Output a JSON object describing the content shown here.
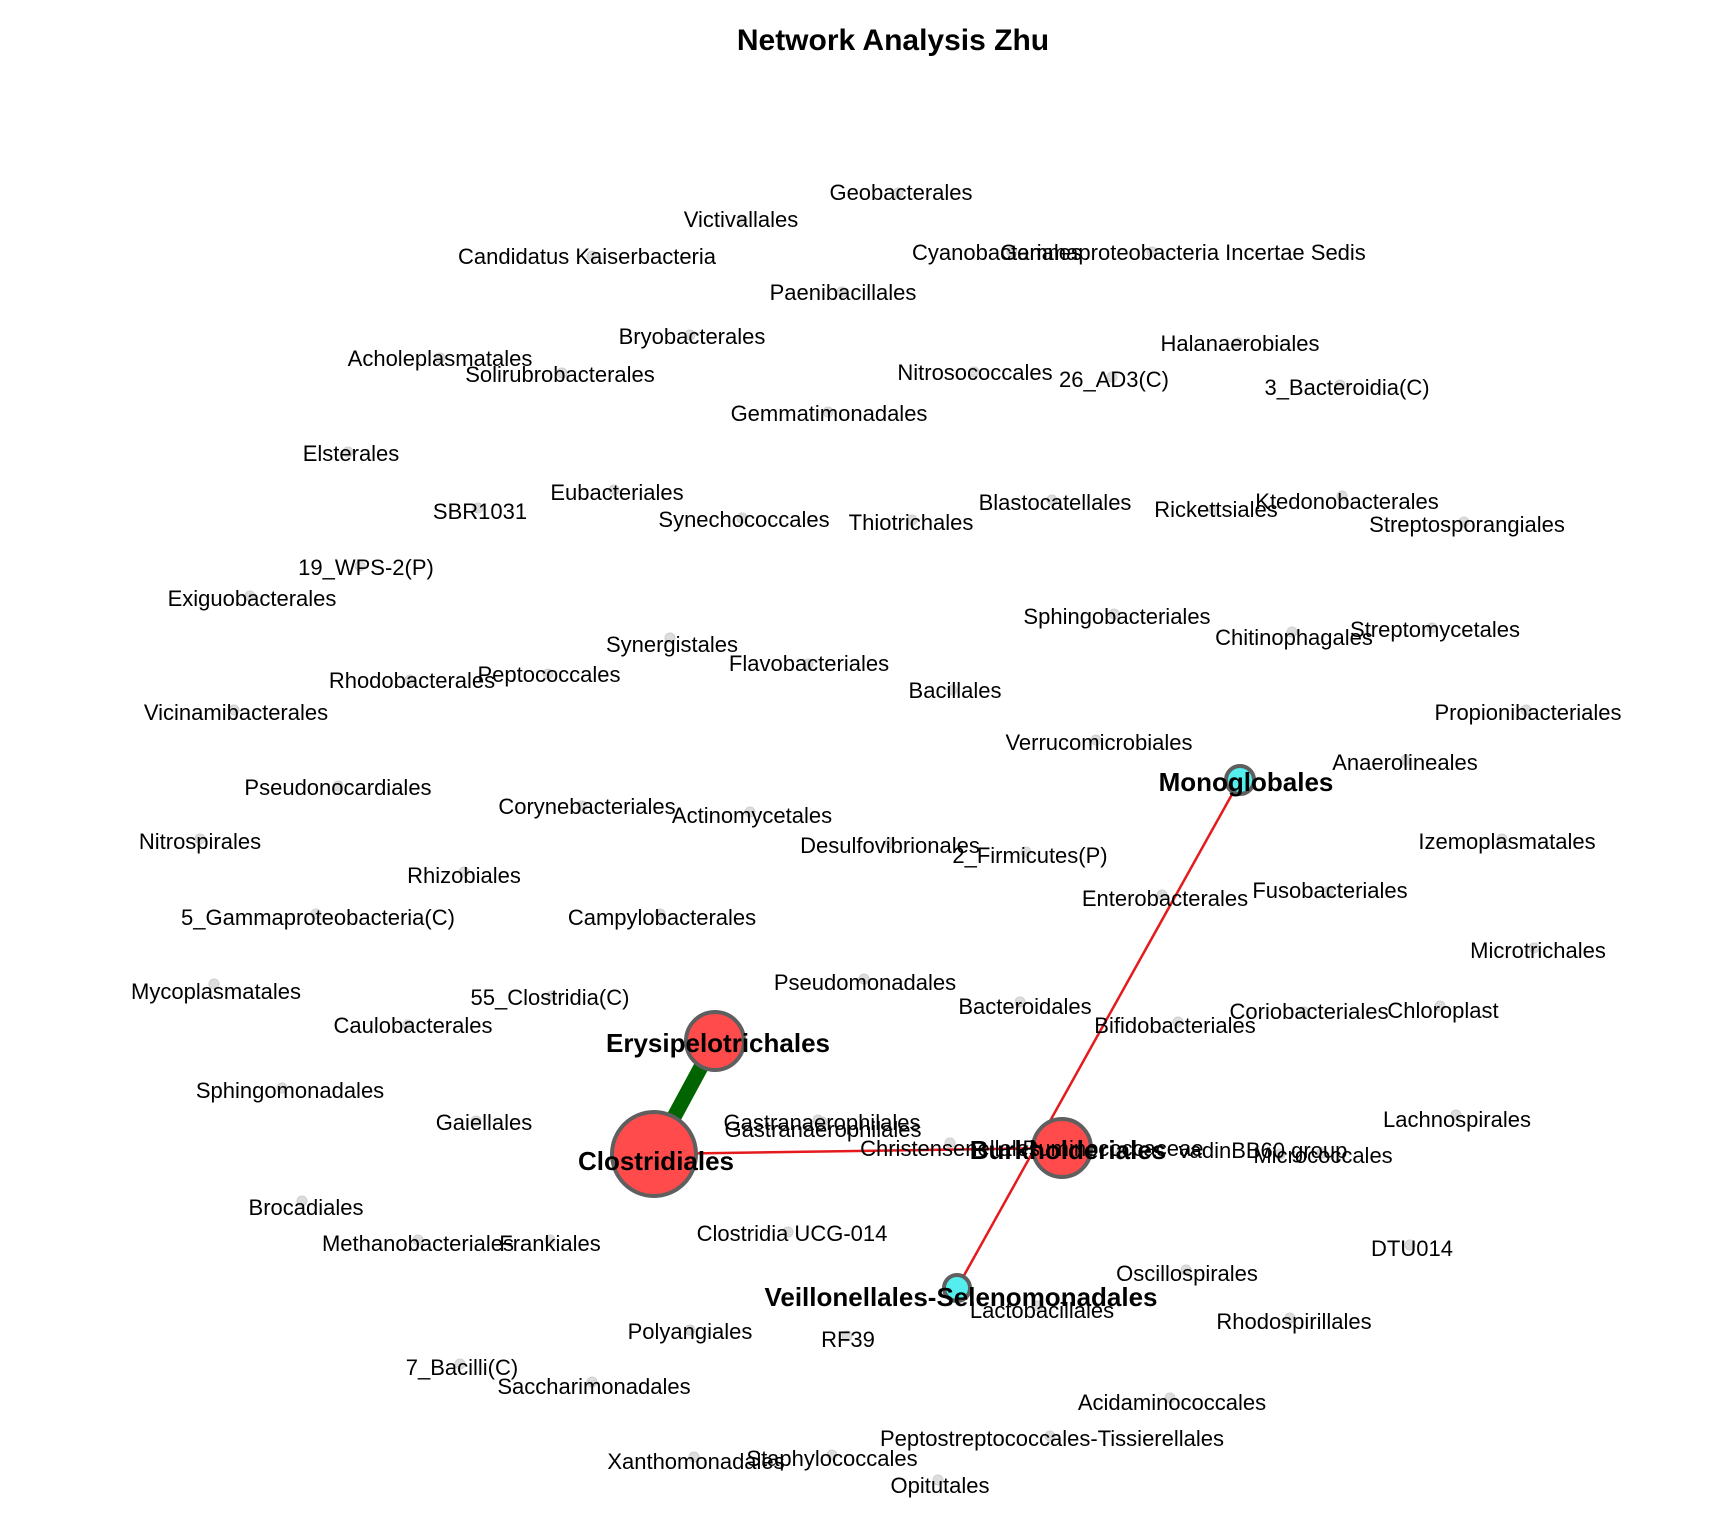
{
  "title": "Network Analysis Zhu",
  "colors": {
    "node_red": "#ff4b4b",
    "node_cyan": "#55eeee",
    "node_stroke": "#5f5f5f",
    "node_small": "#dddddd",
    "edge_red": "#e41a1c",
    "edge_green": "#006400",
    "label": "#000000"
  },
  "hub_nodes": [
    {
      "id": "Clostridiales",
      "label": "Clostridiales",
      "color": "red",
      "size": "large"
    },
    {
      "id": "Burkholderiales",
      "label": "Burkholderiales",
      "color": "red",
      "size": "medium"
    },
    {
      "id": "Erysipelotrichales",
      "label": "Erysipelotrichales",
      "color": "red",
      "size": "medium"
    },
    {
      "id": "Monoglobales",
      "label": "Monoglobales",
      "color": "cyan",
      "size": "small"
    },
    {
      "id": "Veillonellales-Selenomonadales",
      "label": "Veillonellales-Selenomonadales",
      "color": "cyan",
      "size": "small"
    }
  ],
  "edges": [
    {
      "source": "Clostridiales",
      "target": "Erysipelotrichales",
      "color": "green",
      "weight": "strong"
    },
    {
      "source": "Clostridiales",
      "target": "Burkholderiales",
      "color": "red",
      "weight": "weak"
    },
    {
      "source": "Monoglobales",
      "target": "Veillonellales-Selenomonadales",
      "color": "red",
      "weight": "weak"
    }
  ],
  "isolated_nodes": [
    "Geobacterales",
    "Victivallales",
    "Candidatus Kaiserbacteria",
    "Gastranaerophilales",
    "Cyanobacteriales",
    "Gammaproteobacteria Incertae Sedis",
    "Paenibacillales",
    "Bryobacterales",
    "Halanaerobiales",
    "Acholeplasmatales",
    "Solirubrobacterales",
    "Nitrosococcales",
    "26_AD3(C)",
    "3_Bacteroidia(C)",
    "Gemmatimonadales",
    "Elsterales",
    "Eubacteriales",
    "Blastocatellales",
    "Ktedonobacterales",
    "SBR1031",
    "Rickettsiales",
    "Synechococcales",
    "Thiotrichales",
    "Streptosporangiales",
    "19_WPS-2(P)",
    "Exiguobacterales",
    "Sphingobacteriales",
    "Synergistales",
    "Chitinophagales",
    "Streptomycetales",
    "Flavobacteriales",
    "Peptococcales",
    "Rhodobacterales",
    "Bacillales",
    "Vicinamibacterales",
    "Propionibacteriales",
    "Verrucomicrobiales",
    "Anaerolineales",
    "Pseudonocardiales",
    "Corynebacteriales",
    "Actinomycetales",
    "Nitrospirales",
    "Desulfovibrionales",
    "Izemoplasmatales",
    "2_Firmicutes(P)",
    "Rhizobiales",
    "Enterobacterales",
    "Fusobacteriales",
    "5_Gammaproteobacteria(C)",
    "Campylobacterales",
    "Microtrichales",
    "Pseudomonadales",
    "Mycoplasmatales",
    "55_Clostridia(C)",
    "Bacteroidales",
    "Coriobacteriales",
    "Chloroplast",
    "Caulobacterales",
    "Bifidobacteriales",
    "Sphingomonadales",
    "Lachnospirales",
    "Gaiellales",
    "Gastranaerophilales",
    "Christensenellales",
    "Ruminococcaceae",
    "vadinBB60 group",
    "Micrococcales",
    "Brocadiales",
    "Methanobacteriales",
    "Frankiales",
    "Clostridia UCG-014",
    "DTU014",
    "Oscillospirales",
    "Lactobacillales",
    "Rhodospirillales",
    "Polyangiales",
    "RF39",
    "7_Bacilli(C)",
    "Saccharimonadales",
    "Acidaminococcales",
    "Peptostreptococcales-Tissierellales",
    "Xanthomonadales",
    "Staphylococcales",
    "Opitutales"
  ]
}
